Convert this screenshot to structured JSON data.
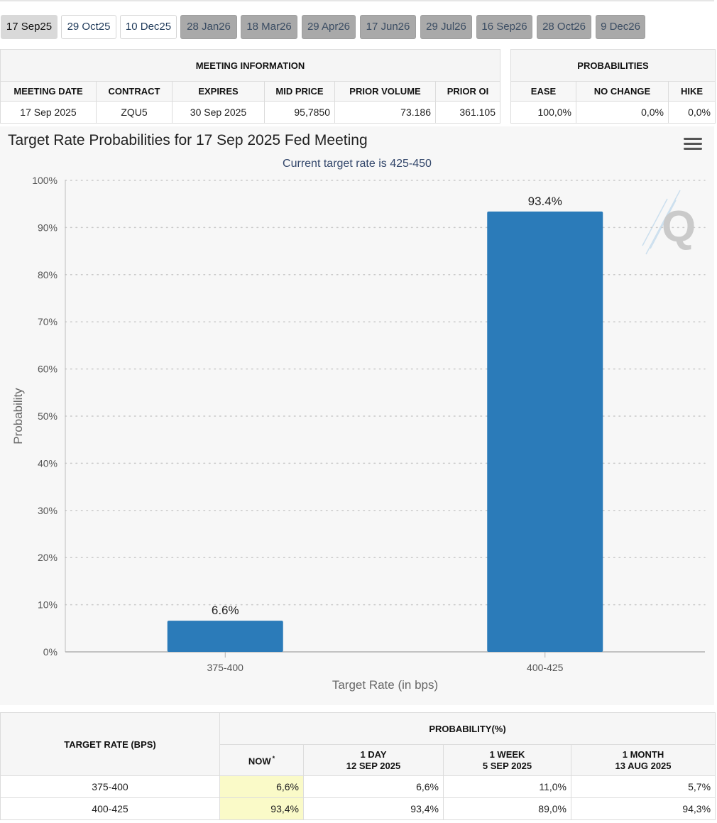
{
  "tabs": [
    {
      "label": "17 Sep25",
      "state": "active"
    },
    {
      "label": "29 Oct25",
      "state": "enabled"
    },
    {
      "label": "10 Dec25",
      "state": "enabled"
    },
    {
      "label": "28 Jan26",
      "state": "disabled"
    },
    {
      "label": "18 Mar26",
      "state": "disabled"
    },
    {
      "label": "29 Apr26",
      "state": "disabled"
    },
    {
      "label": "17 Jun26",
      "state": "disabled"
    },
    {
      "label": "29 Jul26",
      "state": "disabled"
    },
    {
      "label": "16 Sep26",
      "state": "disabled"
    },
    {
      "label": "28 Oct26",
      "state": "disabled"
    },
    {
      "label": "9 Dec26",
      "state": "disabled"
    }
  ],
  "meeting_info": {
    "group_label": "MEETING INFORMATION",
    "headers": [
      "MEETING DATE",
      "CONTRACT",
      "EXPIRES",
      "MID PRICE",
      "PRIOR VOLUME",
      "PRIOR OI"
    ],
    "row": [
      "17 Sep 2025",
      "ZQU5",
      "30 Sep 2025",
      "95,7850",
      "73.186",
      "361.105"
    ]
  },
  "probabilities": {
    "group_label": "PROBABILITIES",
    "headers": [
      "EASE",
      "NO CHANGE",
      "HIKE"
    ],
    "row": [
      "100,0%",
      "0,0%",
      "0,0%"
    ]
  },
  "chart_data": {
    "type": "bar",
    "title": "Target Rate Probabilities for 17 Sep 2025 Fed Meeting",
    "subtitle": "Current target rate is 425-450",
    "xlabel": "Target Rate (in bps)",
    "ylabel": "Probability",
    "categories": [
      "375-400",
      "400-425"
    ],
    "values": [
      6.6,
      93.4
    ],
    "data_labels": [
      "6.6%",
      "93.4%"
    ],
    "ylim": [
      0,
      100
    ],
    "yticks": [
      "0%",
      "10%",
      "20%",
      "30%",
      "40%",
      "50%",
      "60%",
      "70%",
      "80%",
      "90%",
      "100%"
    ],
    "grid": true,
    "bar_color": "#2b7bb9"
  },
  "history": {
    "rate_header": "TARGET RATE (BPS)",
    "prob_header": "PROBABILITY(%)",
    "columns": [
      {
        "line1": "NOW",
        "line2": "",
        "marker": "*"
      },
      {
        "line1": "1 DAY",
        "line2": "12 SEP 2025",
        "marker": ""
      },
      {
        "line1": "1 WEEK",
        "line2": "5 SEP 2025",
        "marker": ""
      },
      {
        "line1": "1 MONTH",
        "line2": "13 AUG 2025",
        "marker": ""
      }
    ],
    "rows": [
      {
        "rate": "375-400",
        "values": [
          "6,6%",
          "6,6%",
          "11,0%",
          "5,7%"
        ]
      },
      {
        "rate": "400-425",
        "values": [
          "93,4%",
          "93,4%",
          "89,0%",
          "94,3%"
        ]
      }
    ]
  }
}
